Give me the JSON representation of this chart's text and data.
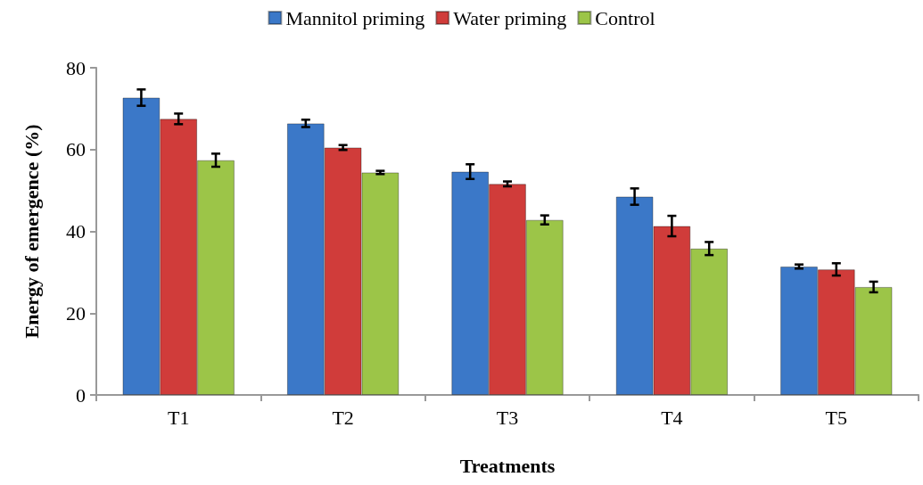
{
  "chart_data": {
    "type": "bar",
    "xlabel": "Treatments",
    "ylabel": "Energy of emergence (%)",
    "categories": [
      "T1",
      "T2",
      "T3",
      "T4",
      "T5"
    ],
    "series": [
      {
        "name": "Mannitol priming",
        "color": "#3b78c8",
        "values": [
          72.7,
          66.4,
          54.6,
          48.5,
          31.4
        ],
        "errors": [
          2.0,
          0.9,
          1.8,
          2.0,
          0.5
        ]
      },
      {
        "name": "Water priming",
        "color": "#d03c3a",
        "values": [
          67.5,
          60.5,
          51.6,
          41.3,
          30.7
        ],
        "errors": [
          1.3,
          0.6,
          0.6,
          2.5,
          1.5
        ]
      },
      {
        "name": "Control",
        "color": "#9cc548",
        "values": [
          57.4,
          54.4,
          42.8,
          35.8,
          26.4
        ],
        "errors": [
          1.6,
          0.4,
          1.1,
          1.6,
          1.3
        ]
      }
    ],
    "ylim": [
      0,
      80
    ],
    "yticks": [
      0,
      20,
      40,
      60,
      80
    ],
    "grid": false,
    "legend": "top"
  }
}
